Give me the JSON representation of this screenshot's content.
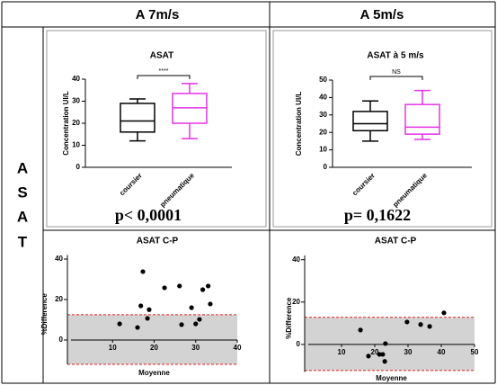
{
  "table": {
    "headers": [
      "A 7m/s",
      "A 5m/s"
    ],
    "row_label": [
      "A",
      "S",
      "A",
      "T"
    ],
    "p_values": [
      "p< 0,0001",
      "p= 0,1622"
    ]
  },
  "chart_data": [
    {
      "type": "box",
      "title": "ASAT",
      "y_label": "Concentration UI/L",
      "ylim": [
        0,
        40
      ],
      "yticks": [
        0,
        10,
        20,
        30,
        40
      ],
      "significance": "****",
      "boxes": [
        {
          "name": "coursier",
          "color": "#000000",
          "min": 12,
          "q1": 16,
          "median": 21,
          "q3": 29,
          "max": 31
        },
        {
          "name": "pneumatique",
          "color": "#e633e6",
          "min": 13,
          "q1": 20,
          "median": 27,
          "q3": 33.5,
          "max": 38
        }
      ]
    },
    {
      "type": "box",
      "title": "ASAT à 5 m/s",
      "y_label": "Concentration UI/L",
      "ylim": [
        0,
        50
      ],
      "yticks": [
        0,
        10,
        20,
        30,
        40,
        50
      ],
      "significance": "NS",
      "boxes": [
        {
          "name": "coursier",
          "color": "#000000",
          "min": 15,
          "q1": 21,
          "median": 25,
          "q3": 32,
          "max": 38
        },
        {
          "name": "pneumatique",
          "color": "#e633e6",
          "min": 16,
          "q1": 19,
          "median": 23,
          "q3": 36,
          "max": 44
        }
      ]
    },
    {
      "type": "scatter",
      "title": "ASAT C-P",
      "x_label": "Moyenne",
      "y_label": "%Difference",
      "xlim": [
        0,
        40
      ],
      "xticks": [
        10,
        20,
        30,
        40
      ],
      "ylim": [
        -12,
        42
      ],
      "yticks": [
        0,
        20,
        40
      ],
      "color": "#000000",
      "limits": [
        12.5,
        -12
      ],
      "limit_color": "#e02020",
      "band_color": "#d3d3d3",
      "x": [
        11.7,
        16,
        16.8,
        17.3,
        18.4,
        18.8,
        22.5,
        26.1,
        26.6,
        29,
        30,
        30.9,
        31.7,
        33,
        33.5
      ],
      "values": [
        8,
        6.2,
        16.9,
        33.8,
        10.7,
        15,
        25.8,
        26.7,
        7.6,
        16,
        8,
        10.2,
        24.9,
        26.7,
        17.8
      ]
    },
    {
      "type": "scatter",
      "title": "ASAT C-P",
      "x_label": "Moyenne",
      "y_label": "%Difference",
      "xlim": [
        0,
        50
      ],
      "xticks": [
        10,
        20,
        30,
        40,
        50
      ],
      "ylim": [
        -13,
        42
      ],
      "yticks": [
        0,
        20,
        40
      ],
      "color": "#000000",
      "limits": [
        12.8,
        -12.3
      ],
      "limit_color": "#e02020",
      "band_color": "#d3d3d3",
      "x": [
        15.7,
        18.1,
        21.4,
        22.4,
        23.2,
        23,
        29.7,
        33.8,
        36.5,
        40.8
      ],
      "values": [
        6.8,
        -5.5,
        -4.7,
        -4.7,
        0.4,
        -8,
        10.6,
        9.4,
        8.5,
        14.9
      ]
    }
  ]
}
